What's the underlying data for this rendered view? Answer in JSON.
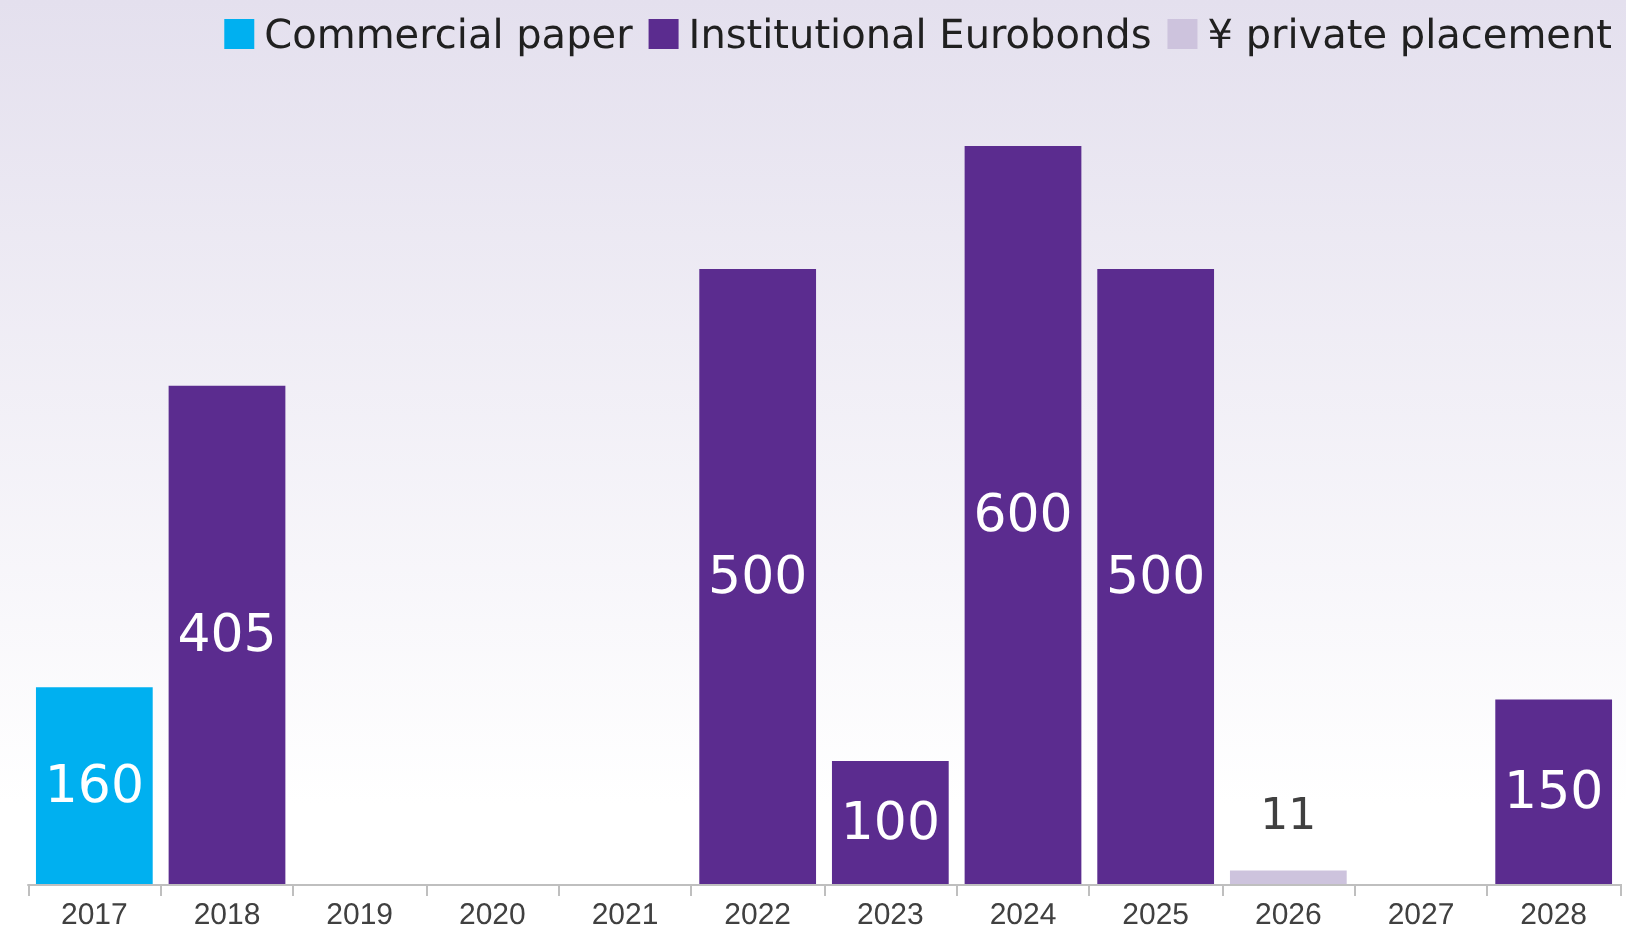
{
  "chart_data": {
    "type": "bar",
    "stacked": true,
    "categories": [
      "2017",
      "2018",
      "2019",
      "2020",
      "2021",
      "2022",
      "2023",
      "2024",
      "2025",
      "2026",
      "2027",
      "2028"
    ],
    "series": [
      {
        "name": "Commercial paper",
        "color": "#00b0f0",
        "values": [
          160,
          null,
          null,
          null,
          null,
          null,
          null,
          null,
          null,
          null,
          null,
          null
        ]
      },
      {
        "name": "Institutional Eurobonds",
        "color": "#5b2c8f",
        "values": [
          null,
          405,
          null,
          null,
          null,
          500,
          100,
          600,
          500,
          null,
          null,
          150
        ]
      },
      {
        "name": "¥ private placement",
        "color": "#cdc3dd",
        "values": [
          null,
          null,
          null,
          null,
          null,
          null,
          null,
          null,
          null,
          11,
          null,
          null
        ]
      }
    ],
    "data_labels": true,
    "legend": "top right",
    "grid": false
  }
}
